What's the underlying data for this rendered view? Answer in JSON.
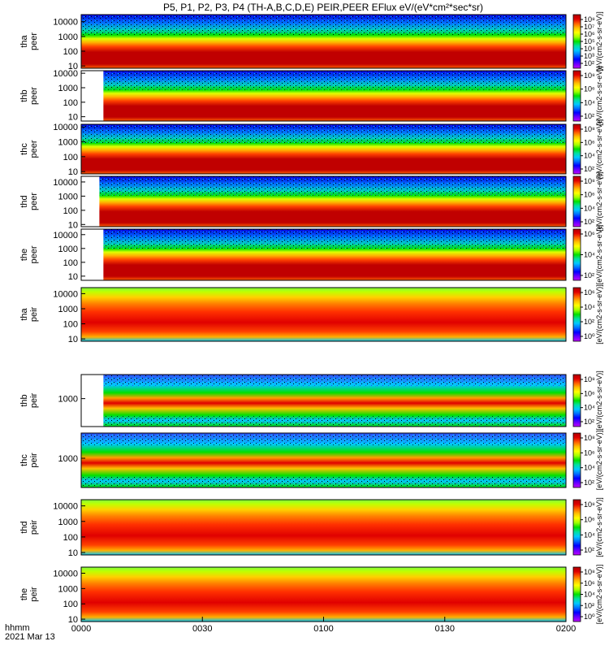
{
  "title": "P5, P1, P2, P3, P4 (TH-A,B,C,D,E) PEIR,PEER EFlux eV/(eV*cm²*sec*sr)",
  "time_axis": {
    "label_line1": "hhmm",
    "label_line2": "2021 Mar 13",
    "ticks": [
      "0000",
      "0030",
      "0100",
      "0130",
      "0200"
    ],
    "range_minutes": [
      0,
      120
    ]
  },
  "colorbar": {
    "scale": "log",
    "unit_label": "[eV/(cm2-s-sr-eV)]",
    "colors": [
      "#ffffff",
      "#c000ff",
      "#6a00ff",
      "#0000ff",
      "#0070ff",
      "#00c8ff",
      "#00e0a0",
      "#00e000",
      "#a0ff00",
      "#ffff00",
      "#ffc000",
      "#ff6000",
      "#e00000",
      "#b00000"
    ]
  },
  "chart_data": [
    {
      "type": "heatmap",
      "panel": "tha peer",
      "ylabel_line1": "tha",
      "ylabel_line2": "peer",
      "yscale": "log",
      "ylim": [
        7,
        30000
      ],
      "yticks": [
        "10000",
        "1000",
        "100",
        "10"
      ],
      "cbar_ticks": [
        "10⁸",
        "10⁷",
        "10⁶",
        "10⁵",
        "10⁴",
        "10³",
        "10²"
      ],
      "data_start_min": 0,
      "data_end_min": 120
    },
    {
      "type": "heatmap",
      "panel": "thb peer",
      "ylabel_line1": "thb",
      "ylabel_line2": "peer",
      "yscale": "log",
      "ylim": [
        5,
        15000
      ],
      "yticks": [
        "10000",
        "1000",
        "100",
        "10"
      ],
      "cbar_ticks": [
        "10⁸",
        "10⁶",
        "10⁴",
        "10²"
      ],
      "data_start_min": 5.5,
      "data_end_min": 120
    },
    {
      "type": "heatmap",
      "panel": "thc peer",
      "ylabel_line1": "thc",
      "ylabel_line2": "peer",
      "yscale": "log",
      "ylim": [
        7,
        15000
      ],
      "yticks": [
        "10000",
        "1000",
        "100",
        "10"
      ],
      "cbar_ticks": [
        "10⁸",
        "10⁶",
        "10⁴",
        "10²"
      ],
      "data_start_min": 0,
      "data_end_min": 120
    },
    {
      "type": "heatmap",
      "panel": "thd peer",
      "ylabel_line1": "thd",
      "ylabel_line2": "peer",
      "yscale": "log",
      "ylim": [
        7,
        25000
      ],
      "yticks": [
        "10000",
        "1000",
        "100",
        "10"
      ],
      "cbar_ticks": [
        "10⁸",
        "10⁶",
        "10⁴",
        "10²"
      ],
      "data_start_min": 4.5,
      "data_end_min": 120
    },
    {
      "type": "heatmap",
      "panel": "the peer",
      "ylabel_line1": "the",
      "ylabel_line2": "peer",
      "yscale": "log",
      "ylim": [
        5,
        25000
      ],
      "yticks": [
        "10000",
        "1000",
        "100",
        "10"
      ],
      "cbar_ticks": [
        "10⁶",
        "10⁴",
        "10²"
      ],
      "data_start_min": 5.5,
      "data_end_min": 120
    },
    {
      "type": "heatmap",
      "panel": "tha peir",
      "ylabel_line1": "tha",
      "ylabel_line2": "peir",
      "yscale": "log",
      "ylim": [
        7,
        25000
      ],
      "yticks": [
        "10000",
        "1000",
        "100",
        "10"
      ],
      "cbar_ticks": [
        "10⁶",
        "10⁴",
        "10²",
        "10⁰"
      ],
      "data_start_min": 0,
      "data_end_min": 120
    },
    {
      "type": "heatmap",
      "panel": "thb peir",
      "ylabel_line1": "thb",
      "ylabel_line2": "peir",
      "yscale": "log",
      "ylim": [
        200,
        4000
      ],
      "yticks": [
        "1000"
      ],
      "cbar_ticks": [
        "10⁸",
        "10⁶",
        "10⁴",
        "10²"
      ],
      "data_start_min": 5.5,
      "data_end_min": 120
    },
    {
      "type": "heatmap",
      "panel": "thc peir",
      "ylabel_line1": "thc",
      "ylabel_line2": "peir",
      "yscale": "log",
      "ylim": [
        200,
        4000
      ],
      "yticks": [
        "1000"
      ],
      "cbar_ticks": [
        "10⁸",
        "10⁶",
        "10⁴",
        "10²"
      ],
      "data_start_min": 0,
      "data_end_min": 120
    },
    {
      "type": "heatmap",
      "panel": "thd peir",
      "ylabel_line1": "thd",
      "ylabel_line2": "peir",
      "yscale": "log",
      "ylim": [
        7,
        25000
      ],
      "yticks": [
        "10000",
        "1000",
        "100",
        "10"
      ],
      "cbar_ticks": [
        "10⁸",
        "10⁶",
        "10⁴",
        "10²"
      ],
      "data_start_min": 0,
      "data_end_min": 120
    },
    {
      "type": "heatmap",
      "panel": "the peir",
      "ylabel_line1": "the",
      "ylabel_line2": "peir",
      "yscale": "log",
      "ylim": [
        7,
        25000
      ],
      "yticks": [
        "10000",
        "1000",
        "100",
        "10"
      ],
      "cbar_ticks": [
        "10⁸",
        "10⁶",
        "10⁴",
        "10²",
        "10⁰"
      ],
      "data_start_min": 0,
      "data_end_min": 120
    }
  ]
}
